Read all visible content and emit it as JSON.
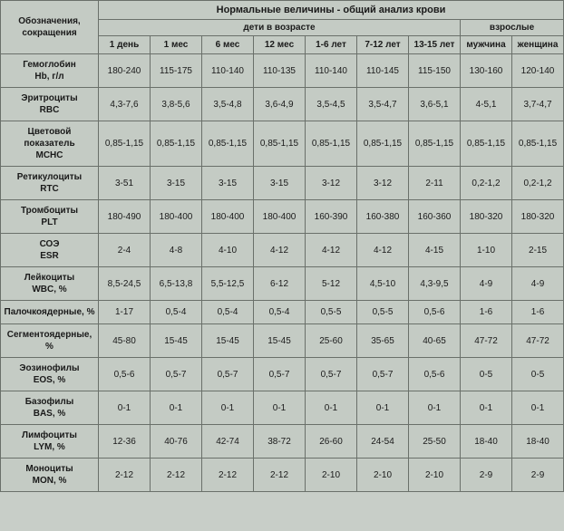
{
  "table": {
    "header": {
      "corner": "Обозначения, сокращения",
      "main": "Нормальные величины - общий анализ крови",
      "children_group": "дети в возрасте",
      "adults_group": "взрослые",
      "columns": [
        "1 день",
        "1 мес",
        "6 мес",
        "12 мес",
        "1-6 лет",
        "7-12 лет",
        "13-15 лет",
        "мужчина",
        "женщина"
      ]
    },
    "rows": [
      {
        "label": "Гемоглобин\nHb, г/л",
        "cells": [
          "180-240",
          "115-175",
          "110-140",
          "110-135",
          "110-140",
          "110-145",
          "115-150",
          "130-160",
          "120-140"
        ]
      },
      {
        "label": "Эритроциты\nRBC",
        "cells": [
          "4,3-7,6",
          "3,8-5,6",
          "3,5-4,8",
          "3,6-4,9",
          "3,5-4,5",
          "3,5-4,7",
          "3,6-5,1",
          "4-5,1",
          "3,7-4,7"
        ]
      },
      {
        "label": "Цветовой показатель\nMCHC",
        "cells": [
          "0,85-1,15",
          "0,85-1,15",
          "0,85-1,15",
          "0,85-1,15",
          "0,85-1,15",
          "0,85-1,15",
          "0,85-1,15",
          "0,85-1,15",
          "0,85-1,15"
        ]
      },
      {
        "label": "Ретикулоциты\nRTC",
        "cells": [
          "3-51",
          "3-15",
          "3-15",
          "3-15",
          "3-12",
          "3-12",
          "2-11",
          "0,2-1,2",
          "0,2-1,2"
        ]
      },
      {
        "label": "Тромбоциты\nPLT",
        "cells": [
          "180-490",
          "180-400",
          "180-400",
          "180-400",
          "160-390",
          "160-380",
          "160-360",
          "180-320",
          "180-320"
        ]
      },
      {
        "label": "СОЭ\nESR",
        "cells": [
          "2-4",
          "4-8",
          "4-10",
          "4-12",
          "4-12",
          "4-12",
          "4-15",
          "1-10",
          "2-15"
        ]
      },
      {
        "label": "Лейкоциты\nWBC, %",
        "cells": [
          "8,5-24,5",
          "6,5-13,8",
          "5,5-12,5",
          "6-12",
          "5-12",
          "4,5-10",
          "4,3-9,5",
          "4-9",
          "4-9"
        ]
      },
      {
        "label": "Палочкоядерные, %",
        "cells": [
          "1-17",
          "0,5-4",
          "0,5-4",
          "0,5-4",
          "0,5-5",
          "0,5-5",
          "0,5-6",
          "1-6",
          "1-6"
        ]
      },
      {
        "label": "Сегментоядерные, %",
        "cells": [
          "45-80",
          "15-45",
          "15-45",
          "15-45",
          "25-60",
          "35-65",
          "40-65",
          "47-72",
          "47-72"
        ]
      },
      {
        "label": "Эозинофилы\nEOS, %",
        "cells": [
          "0,5-6",
          "0,5-7",
          "0,5-7",
          "0,5-7",
          "0,5-7",
          "0,5-7",
          "0,5-6",
          "0-5",
          "0-5"
        ]
      },
      {
        "label": "Базофилы\nBAS, %",
        "cells": [
          "0-1",
          "0-1",
          "0-1",
          "0-1",
          "0-1",
          "0-1",
          "0-1",
          "0-1",
          "0-1"
        ]
      },
      {
        "label": "Лимфоциты\nLYM, %",
        "cells": [
          "12-36",
          "40-76",
          "42-74",
          "38-72",
          "26-60",
          "24-54",
          "25-50",
          "18-40",
          "18-40"
        ]
      },
      {
        "label": "Моноциты\nMON, %",
        "cells": [
          "2-12",
          "2-12",
          "2-12",
          "2-12",
          "2-10",
          "2-10",
          "2-10",
          "2-9",
          "2-9"
        ]
      }
    ],
    "styles": {
      "background": "#c4cbc4",
      "border_color": "#6a706a",
      "text_color": "#1a1a1a",
      "font_main": 10,
      "font_header": 11
    }
  }
}
